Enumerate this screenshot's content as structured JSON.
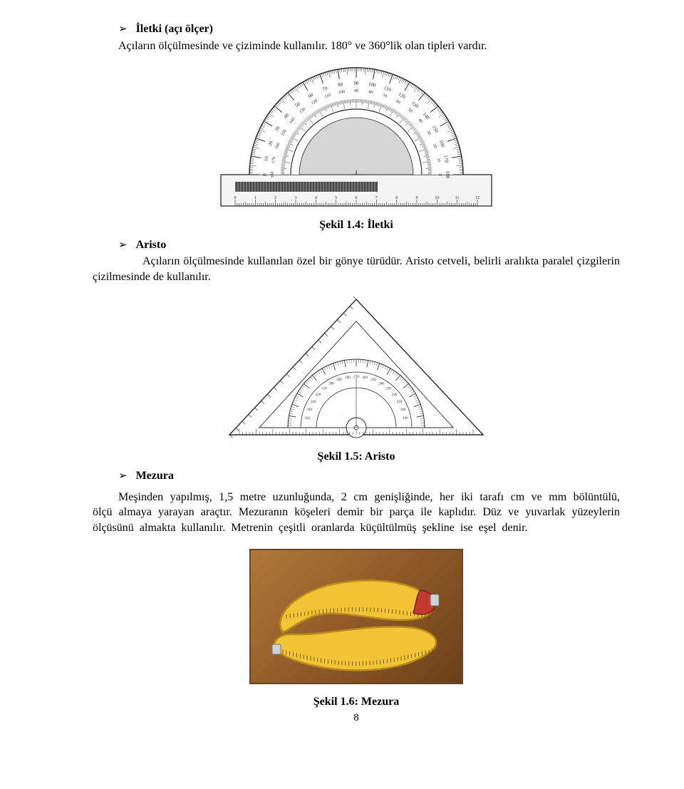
{
  "section1": {
    "title": "İletki (açı ölçer)",
    "text": "Açıların ölçülmesinde ve çiziminde kullanılır. 180° ve 360°lik olan tipleri vardır."
  },
  "fig1": {
    "caption": "Şekil 1.4: İletki",
    "outer_scale": [
      "0",
      "10",
      "20",
      "30",
      "40",
      "50",
      "60",
      "70",
      "80",
      "90",
      "100",
      "110",
      "120",
      "130",
      "140",
      "150",
      "160",
      "170",
      "180"
    ],
    "ruler_marks": [
      "0",
      "1",
      "2",
      "3",
      "4",
      "5",
      "6",
      "7",
      "8",
      "9",
      "10",
      "11",
      "12"
    ],
    "colors": {
      "bg": "#ffffff",
      "line": "#2a2a2a",
      "shade": "#8a8a8a"
    }
  },
  "section2": {
    "title": "Aristo",
    "text": "Açıların ölçülmesinde kullanılan özel bir gönye türüdür. Aristo cetveli, belirli aralıkta paralel çizgilerin çizilmesinde de kullanılır."
  },
  "fig2": {
    "caption": "Şekil 1.5: Aristo",
    "scale": [
      "350",
      "340",
      "330",
      "320",
      "310",
      "300",
      "290",
      "280",
      "270",
      "260",
      "250",
      "240",
      "230",
      "220",
      "210",
      "200",
      "190"
    ],
    "colors": {
      "bg": "#ffffff",
      "line": "#2b2b2b"
    }
  },
  "section3": {
    "title": "Mezura",
    "text": "Meşinden yapılmış, 1,5 metre uzunluğunda, 2 cm genişliğinde, her iki tarafı cm ve mm bölüntülü, ölçü almaya yarayan araçtır. Mezuranın köşeleri demir bir parça ile kaplıdır. Düz ve yuvarlak yüzeylerin ölçüsünü almakta kullanılır. Metrenin çeşitli oranlarda küçültülmüş şekline ise eşel denir."
  },
  "fig3": {
    "caption": "Şekil 1.6: Mezura",
    "colors": {
      "bg_top": "#b07838",
      "bg_bot": "#6a4018",
      "tape": "#f2c335",
      "tape_edge": "#b98d18",
      "tip_red": "#c43a2e",
      "tip_metal": "#cfd2d6"
    }
  },
  "page_number": "8"
}
